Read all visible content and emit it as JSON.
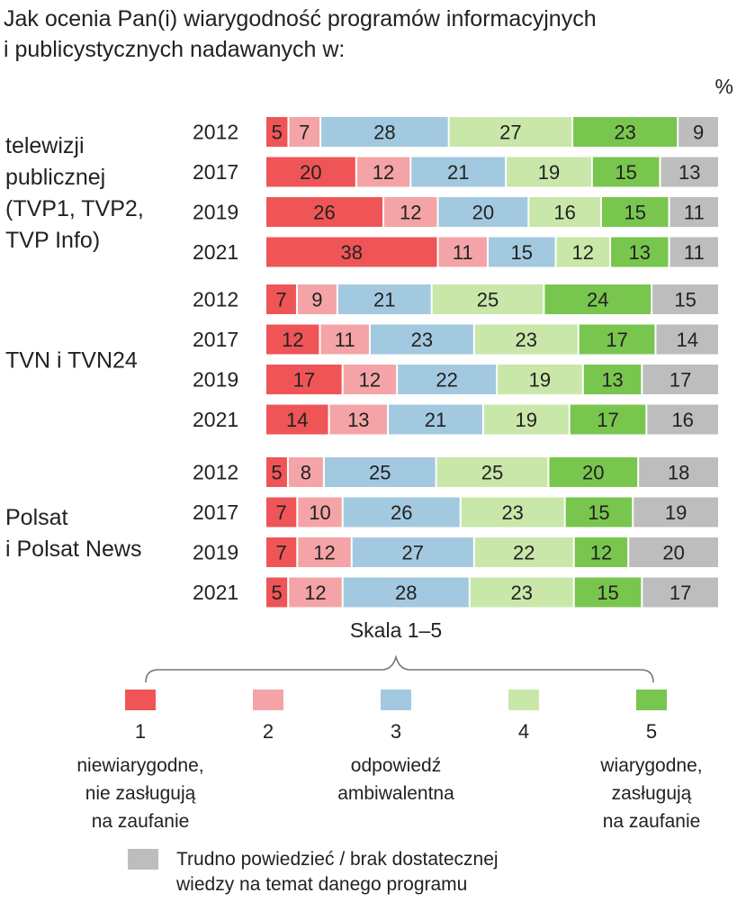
{
  "title": "Jak ocenia Pan(i) wiarygodność programów informacyjnych\ni publicystycznych nadawanych w:",
  "unit": "%",
  "scale_label": "Skala 1–5",
  "colors": {
    "c1": "#ef5557",
    "c2": "#f4a4a6",
    "c3": "#a3c9e0",
    "c4": "#c9e7a9",
    "c5": "#79c64f",
    "c6": "#bdbdbd"
  },
  "chart_data": {
    "type": "bar",
    "stacked": true,
    "orientation": "horizontal",
    "unit": "%",
    "groups": [
      {
        "label_lines": [
          "telewizji",
          "publicznej",
          "(TVP1, TVP2,",
          "TVP Info)"
        ],
        "rows": [
          {
            "year": "2012",
            "values": [
              5,
              7,
              28,
              27,
              23,
              9
            ]
          },
          {
            "year": "2017",
            "values": [
              20,
              12,
              21,
              19,
              15,
              13
            ]
          },
          {
            "year": "2019",
            "values": [
              26,
              12,
              20,
              16,
              15,
              11
            ]
          },
          {
            "year": "2021",
            "values": [
              38,
              11,
              15,
              12,
              13,
              11
            ]
          }
        ]
      },
      {
        "label_lines": [
          "TVN i TVN24"
        ],
        "rows": [
          {
            "year": "2012",
            "values": [
              7,
              9,
              21,
              25,
              24,
              15
            ]
          },
          {
            "year": "2017",
            "values": [
              12,
              11,
              23,
              23,
              17,
              14
            ]
          },
          {
            "year": "2019",
            "values": [
              17,
              12,
              22,
              19,
              13,
              17
            ]
          },
          {
            "year": "2021",
            "values": [
              14,
              13,
              21,
              19,
              17,
              16
            ]
          }
        ]
      },
      {
        "label_lines": [
          "Polsat",
          "i Polsat News"
        ],
        "rows": [
          {
            "year": "2012",
            "values": [
              5,
              8,
              25,
              25,
              20,
              18
            ]
          },
          {
            "year": "2017",
            "values": [
              7,
              10,
              26,
              23,
              15,
              19
            ]
          },
          {
            "year": "2019",
            "values": [
              7,
              12,
              27,
              22,
              12,
              20
            ]
          },
          {
            "year": "2021",
            "values": [
              5,
              12,
              28,
              23,
              15,
              17
            ]
          }
        ]
      }
    ],
    "series": [
      {
        "name": "1",
        "label_lines": [
          "niewiarygodne,",
          "nie zasługują",
          "na zaufanie"
        ]
      },
      {
        "name": "2",
        "label_lines": []
      },
      {
        "name": "3",
        "label_lines": [
          "odpowiedź",
          "ambiwalentna"
        ]
      },
      {
        "name": "4",
        "label_lines": []
      },
      {
        "name": "5",
        "label_lines": [
          "wiarygodne,",
          "zasługują",
          "na zaufanie"
        ]
      },
      {
        "name": "Trudno powiedzieć / brak dostatecznej wiedzy na temat danego programu",
        "label_lines": [
          "Trudno powiedzieć / brak dostatecznej",
          "wiedzy na temat danego programu"
        ]
      }
    ]
  }
}
